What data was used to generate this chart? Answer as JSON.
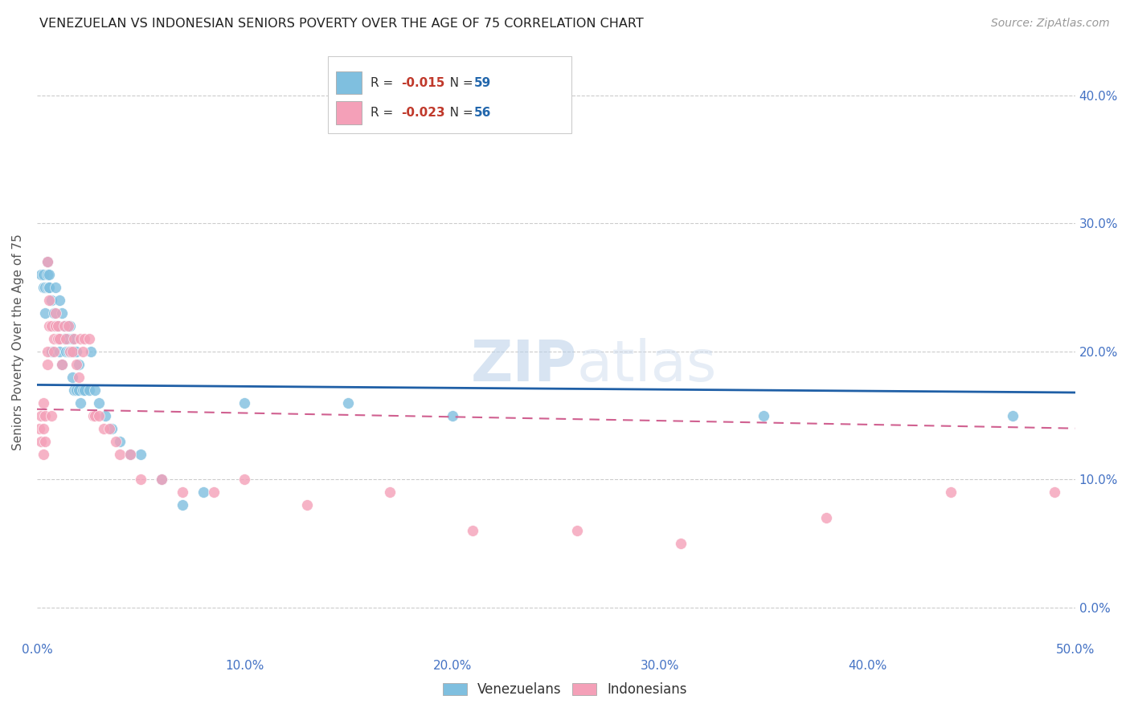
{
  "title": "VENEZUELAN VS INDONESIAN SENIORS POVERTY OVER THE AGE OF 75 CORRELATION CHART",
  "source": "Source: ZipAtlas.com",
  "ylabel": "Seniors Poverty Over the Age of 75",
  "xlim": [
    0.0,
    0.5
  ],
  "ylim": [
    -0.025,
    0.44
  ],
  "xticks": [
    0.0,
    0.1,
    0.2,
    0.3,
    0.4,
    0.5
  ],
  "yticks": [
    0.0,
    0.1,
    0.2,
    0.3,
    0.4
  ],
  "xtick_labels_show": [
    "0.0%",
    "50.0%"
  ],
  "xtick_labels_hide": [
    "10.0%",
    "20.0%",
    "30.0%",
    "40.0%"
  ],
  "ytick_labels": [
    "0.0%",
    "10.0%",
    "20.0%",
    "30.0%",
    "40.0%"
  ],
  "grid_color": "#cccccc",
  "background_color": "#ffffff",
  "venezuelan_color": "#7fbfdf",
  "indonesian_color": "#f4a0b8",
  "venezuelan_line_color": "#1f5fa6",
  "indonesian_line_color": "#d06090",
  "venezuelan_R": "-0.015",
  "venezuelan_N": "59",
  "indonesian_R": "-0.023",
  "indonesian_N": "56",
  "watermark_zip": "ZIP",
  "watermark_atlas": "atlas",
  "ven_line_y0": 0.174,
  "ven_line_y1": 0.168,
  "indo_line_y0": 0.155,
  "indo_line_y1": 0.14,
  "venezuelan_x": [
    0.002,
    0.003,
    0.003,
    0.004,
    0.004,
    0.005,
    0.005,
    0.005,
    0.006,
    0.006,
    0.006,
    0.007,
    0.007,
    0.008,
    0.008,
    0.009,
    0.009,
    0.01,
    0.01,
    0.011,
    0.011,
    0.012,
    0.012,
    0.013,
    0.013,
    0.014,
    0.014,
    0.015,
    0.015,
    0.016,
    0.016,
    0.017,
    0.017,
    0.018,
    0.018,
    0.019,
    0.019,
    0.02,
    0.02,
    0.021,
    0.022,
    0.023,
    0.025,
    0.026,
    0.028,
    0.03,
    0.033,
    0.036,
    0.04,
    0.045,
    0.05,
    0.06,
    0.07,
    0.08,
    0.1,
    0.15,
    0.2,
    0.35,
    0.47
  ],
  "venezuelan_y": [
    0.26,
    0.25,
    0.26,
    0.23,
    0.25,
    0.25,
    0.26,
    0.27,
    0.25,
    0.26,
    0.25,
    0.24,
    0.2,
    0.23,
    0.22,
    0.22,
    0.25,
    0.21,
    0.22,
    0.24,
    0.2,
    0.23,
    0.19,
    0.22,
    0.21,
    0.2,
    0.22,
    0.2,
    0.21,
    0.22,
    0.2,
    0.21,
    0.18,
    0.2,
    0.17,
    0.2,
    0.17,
    0.19,
    0.17,
    0.16,
    0.17,
    0.17,
    0.17,
    0.2,
    0.17,
    0.16,
    0.15,
    0.14,
    0.13,
    0.12,
    0.12,
    0.1,
    0.08,
    0.09,
    0.16,
    0.16,
    0.15,
    0.15,
    0.15
  ],
  "indonesian_x": [
    0.001,
    0.002,
    0.002,
    0.003,
    0.003,
    0.003,
    0.004,
    0.004,
    0.005,
    0.005,
    0.005,
    0.006,
    0.006,
    0.007,
    0.007,
    0.008,
    0.008,
    0.009,
    0.009,
    0.01,
    0.01,
    0.011,
    0.012,
    0.013,
    0.014,
    0.015,
    0.016,
    0.017,
    0.018,
    0.019,
    0.02,
    0.021,
    0.022,
    0.023,
    0.025,
    0.027,
    0.028,
    0.03,
    0.032,
    0.035,
    0.038,
    0.04,
    0.045,
    0.05,
    0.06,
    0.07,
    0.085,
    0.1,
    0.13,
    0.17,
    0.21,
    0.26,
    0.31,
    0.38,
    0.44,
    0.49
  ],
  "indonesian_y": [
    0.14,
    0.13,
    0.15,
    0.12,
    0.14,
    0.16,
    0.13,
    0.15,
    0.27,
    0.19,
    0.2,
    0.24,
    0.22,
    0.15,
    0.22,
    0.2,
    0.21,
    0.22,
    0.23,
    0.21,
    0.22,
    0.21,
    0.19,
    0.22,
    0.21,
    0.22,
    0.2,
    0.2,
    0.21,
    0.19,
    0.18,
    0.21,
    0.2,
    0.21,
    0.21,
    0.15,
    0.15,
    0.15,
    0.14,
    0.14,
    0.13,
    0.12,
    0.12,
    0.1,
    0.1,
    0.09,
    0.09,
    0.1,
    0.08,
    0.09,
    0.06,
    0.06,
    0.05,
    0.07,
    0.09,
    0.09
  ]
}
